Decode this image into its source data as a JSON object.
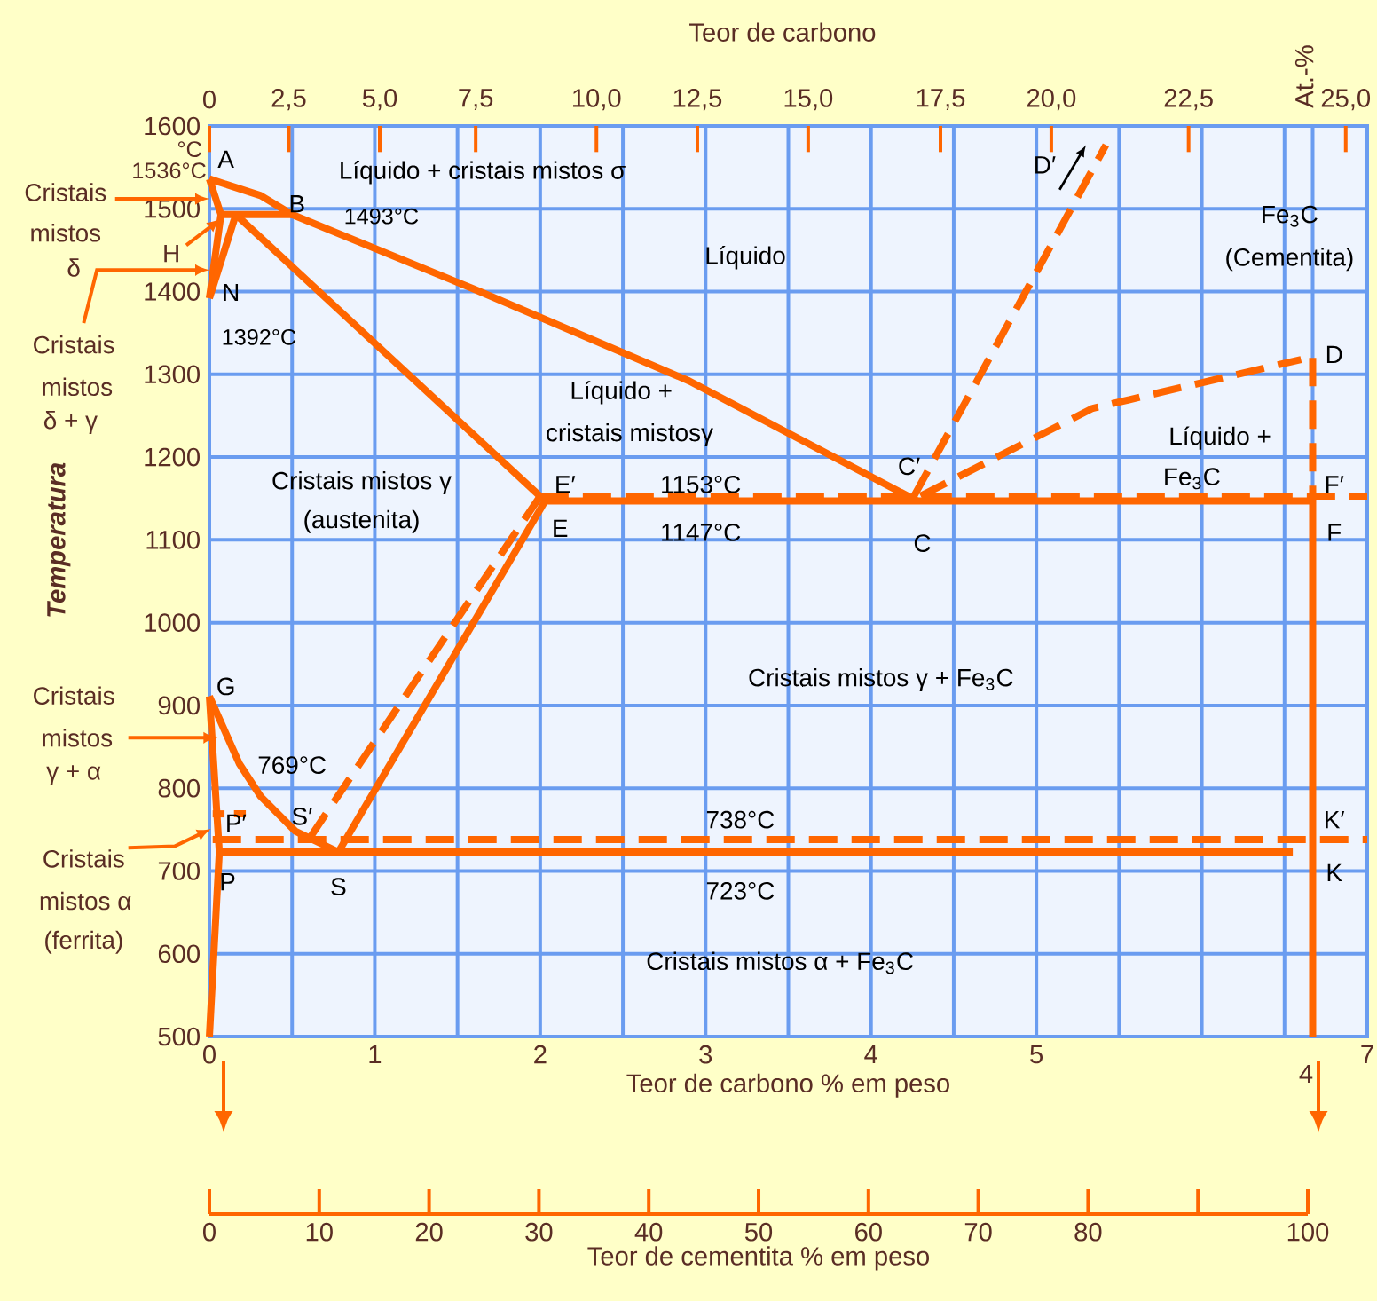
{
  "chart_data": {
    "type": "line",
    "title": "Teor de carbono",
    "xlabel": "Teor de carbono % em peso",
    "ylabel": "Temperatura",
    "x2label": "Teor de cementita % em peso",
    "xlim": [
      0,
      7
    ],
    "ylim": [
      500,
      1600
    ],
    "xticks": [
      0,
      {
        "value": 0.5,
        "label": null
      },
      1,
      {
        "value": 1.5,
        "label": null
      },
      2,
      {
        "value": 2.5,
        "label": null
      },
      3,
      {
        "value": 3.5,
        "label": null
      },
      4,
      {
        "value": 4.5,
        "label": null
      },
      5,
      {
        "value": 5.5,
        "label": null
      },
      {
        "value": 6,
        "label": null
      },
      {
        "value": 6.5,
        "label": null
      },
      {
        "value": 6.67,
        "label": null
      },
      7
    ],
    "yticks": [
      500,
      600,
      700,
      800,
      900,
      1000,
      1100,
      1200,
      1300,
      1400,
      1500,
      1600
    ],
    "x2lim": [
      0,
      100
    ],
    "x2ticks": [
      0,
      10,
      20,
      30,
      40,
      50,
      60,
      70,
      80,
      {
        "value": 90,
        "label": null
      },
      100
    ],
    "grid": true,
    "series": [
      {
        "color": "#ff6600",
        "line_style": "solid",
        "x": [
          0,
          0.31,
          0.5,
          1.6,
          2.9,
          4.28
        ],
        "values": [
          1536,
          1516,
          1493,
          1403,
          1292,
          1147
        ]
      },
      {
        "color": "#ff6600",
        "line_style": "solid",
        "x": [
          0,
          0.07,
          0
        ],
        "values": [
          1536,
          1493,
          1392
        ]
      },
      {
        "color": "#ff6600",
        "line_style": "solid",
        "x": [
          0.16,
          0
        ],
        "values": [
          1493,
          1392
        ]
      },
      {
        "color": "#ff6600",
        "line_style": "solid",
        "x": [
          0.07,
          0.5
        ],
        "values": [
          1493,
          1493
        ]
      },
      {
        "color": "#ff6600",
        "line_style": "solid",
        "x": [
          0.16,
          2.03
        ],
        "values": [
          1493,
          1147
        ]
      },
      {
        "color": "#ff6600",
        "line_style": "solid",
        "x": [
          2.03,
          6.67
        ],
        "values": [
          1147,
          1147
        ]
      },
      {
        "color": "#ff6600",
        "line_style": "solid",
        "x": [
          2.03,
          0.78
        ],
        "values": [
          1147,
          723
        ]
      },
      {
        "color": "#ff6600",
        "line_style": "solid",
        "x": [
          0,
          0.18,
          0.31,
          0.52,
          0.78
        ],
        "values": [
          911,
          830,
          790,
          748,
          723
        ]
      },
      {
        "color": "#ff6600",
        "line_style": "solid",
        "x": [
          0,
          0.06,
          0
        ],
        "values": [
          911,
          723,
          500
        ]
      },
      {
        "color": "#ff6600",
        "line_style": "solid",
        "x": [
          0.06,
          6.55
        ],
        "values": [
          723,
          723
        ]
      },
      {
        "color": "#ff6600",
        "line_style": "solid",
        "x": [
          6.67,
          6.67
        ],
        "values": [
          1147,
          500
        ]
      },
      {
        "color": "#ff6600",
        "line_style": "dashed",
        "x": [
          6.67,
          6.67
        ],
        "values": [
          1320,
          1147
        ]
      },
      {
        "color": "#ff6600",
        "line_style": "dashed",
        "x": [
          2.0,
          7
        ],
        "values": [
          1153,
          1153
        ]
      },
      {
        "color": "#ff6600",
        "line_style": "dashed",
        "x": [
          2.0,
          0.6
        ],
        "values": [
          1153,
          738
        ]
      },
      {
        "color": "#ff6600",
        "line_style": "dashed",
        "x": [
          0.02,
          7
        ],
        "values": [
          738,
          738
        ]
      },
      {
        "color": "#ff6600",
        "line_style": "dashed",
        "x": [
          4.26,
          5.42
        ],
        "values": [
          1153,
          1577
        ]
      },
      {
        "color": "#ff6600",
        "line_style": "dashed",
        "x": [
          4.3,
          5.34,
          6.6
        ],
        "values": [
          1153,
          1259,
          1318
        ]
      },
      {
        "color": "#ff6600",
        "line_style": "dashed",
        "x": [
          0.02,
          0.27
        ],
        "values": [
          769,
          769
        ]
      }
    ],
    "annotations": [
      "°C",
      "At.-%",
      {
        "text": "1536°C",
        "x": 0,
        "y": 1536
      },
      "Cristais",
      "mistos",
      "δ",
      "H",
      "Cristais",
      "mistos",
      "δ + γ",
      "Cristais",
      "mistos",
      "γ + α",
      "Cristais",
      "mistos α",
      "(ferrita)",
      "A",
      "Líquido + cristais mistos σ",
      "B",
      "1493°C",
      "Líquido",
      "N",
      "1392°C",
      "Líquido  +",
      "cristais mistosγ",
      "Cristais mistos γ",
      "(austenita)",
      "E′",
      "E",
      "1153°C",
      "1147°C",
      "C′",
      "C",
      "D′",
      "Fe$_{3}$C",
      "(Cementita)",
      "D",
      "Líquido  +",
      "Fe$_{3}$C",
      "F′",
      "F",
      "Cristais mistos γ + Fe$_{3}$C",
      "G",
      "769°C",
      "P′",
      "S′",
      "738°C",
      "K′",
      "P",
      "S",
      "723°C",
      "K",
      "Cristais mistos α + Fe$_{3}$C",
      "0",
      "2,5",
      "5,0",
      "7,5",
      "10,0",
      "12,5",
      "15,0",
      "17,5",
      "20,0",
      "22,5",
      "25,0",
      "4"
    ]
  }
}
